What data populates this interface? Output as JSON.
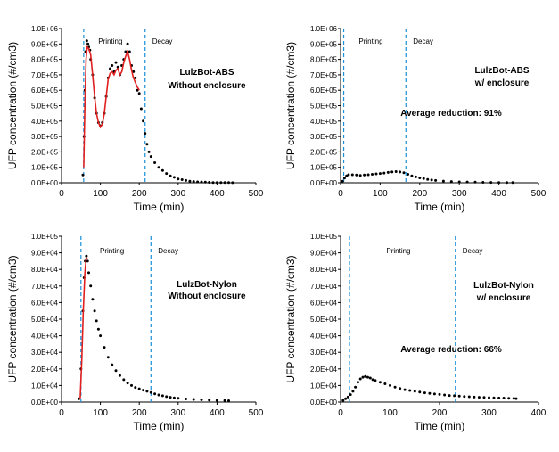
{
  "chart_data": [
    {
      "type": "scatter",
      "title": "",
      "annotation": [
        "LulzBot-ABS",
        "Without enclosure"
      ],
      "xlabel": "Time (min)",
      "ylabel": "UFP concentration (#/cm3)",
      "xlim": [
        0,
        500
      ],
      "ylim": [
        0,
        1000000
      ],
      "xticks": [
        0,
        100,
        200,
        300,
        400,
        500
      ],
      "yticks": [
        "0.0E+00",
        "1.0E+05",
        "2.0E+05",
        "3.0E+05",
        "4.0E+05",
        "5.0E+05",
        "6.0E+05",
        "7.0E+05",
        "8.0E+05",
        "9.0E+05",
        "1.0E+06"
      ],
      "phases": [
        {
          "label": "Printing",
          "start": 57,
          "end": 215
        },
        {
          "label": "Decay",
          "start": 215,
          "end": null
        }
      ],
      "grid": false,
      "series": [
        {
          "marker": "dots",
          "color": "#000000",
          "x": [
            55,
            58,
            60,
            62,
            65,
            68,
            70,
            73,
            75,
            80,
            85,
            90,
            95,
            100,
            105,
            110,
            115,
            120,
            125,
            130,
            135,
            140,
            145,
            150,
            155,
            160,
            165,
            170,
            175,
            180,
            185,
            190,
            195,
            200,
            205,
            210,
            215,
            220,
            225,
            230,
            240,
            250,
            260,
            270,
            280,
            290,
            300,
            310,
            320,
            330,
            340,
            350,
            360,
            370,
            380,
            390,
            400,
            410,
            420,
            430,
            440
          ],
          "y": [
            50000,
            300000,
            600000,
            850000,
            920000,
            900000,
            880000,
            860000,
            800000,
            700000,
            550000,
            450000,
            390000,
            370000,
            390000,
            450000,
            560000,
            680000,
            740000,
            760000,
            720000,
            780000,
            750000,
            700000,
            760000,
            800000,
            850000,
            900000,
            850000,
            760000,
            720000,
            680000,
            600000,
            580000,
            480000,
            400000,
            320000,
            250000,
            200000,
            170000,
            130000,
            100000,
            80000,
            60000,
            45000,
            35000,
            25000,
            20000,
            15000,
            10000,
            8000,
            6000,
            5000,
            4000,
            3000,
            2000,
            2000,
            1000,
            1000,
            1000,
            500
          ]
        },
        {
          "marker": "line",
          "color": "#e02020",
          "x": [
            57,
            60,
            63,
            66,
            70,
            75,
            80,
            85,
            90,
            95,
            100,
            105,
            110,
            115,
            120,
            125,
            130,
            135,
            140,
            145,
            150,
            155,
            160,
            165,
            170,
            175,
            180,
            185,
            190,
            195,
            200
          ],
          "y": [
            100000,
            500000,
            800000,
            880000,
            870000,
            830000,
            700000,
            560000,
            450000,
            390000,
            360000,
            380000,
            450000,
            560000,
            670000,
            710000,
            720000,
            700000,
            730000,
            740000,
            700000,
            720000,
            780000,
            820000,
            850000,
            800000,
            730000,
            680000,
            650000,
            620000,
            600000
          ]
        }
      ]
    },
    {
      "type": "scatter",
      "title": "",
      "annotation": [
        "LulzBot-ABS",
        "w/ enclosure"
      ],
      "note": "Average reduction: 91%",
      "xlabel": "Time (min)",
      "ylabel": "UFP concentration (#/cm3)",
      "xlim": [
        0,
        500
      ],
      "ylim": [
        0,
        1000000
      ],
      "xticks": [
        0,
        100,
        200,
        300,
        400,
        500
      ],
      "yticks": [
        "0.0E+00",
        "1.0E+05",
        "2.0E+05",
        "3.0E+05",
        "4.0E+05",
        "5.0E+05",
        "6.0E+05",
        "7.0E+05",
        "8.0E+05",
        "9.0E+05",
        "1.0E+06"
      ],
      "phases": [
        {
          "label": "Printing",
          "start": 8,
          "end": 165
        },
        {
          "label": "Decay",
          "start": 165,
          "end": null
        }
      ],
      "grid": false,
      "series": [
        {
          "marker": "dots",
          "color": "#000000",
          "x": [
            5,
            10,
            15,
            20,
            30,
            40,
            50,
            60,
            70,
            80,
            90,
            100,
            110,
            120,
            130,
            140,
            150,
            160,
            170,
            180,
            190,
            200,
            210,
            220,
            230,
            240,
            260,
            280,
            300,
            320,
            340,
            360,
            380,
            400,
            420,
            435
          ],
          "y": [
            10000,
            30000,
            45000,
            52000,
            52000,
            50000,
            48000,
            50000,
            52000,
            55000,
            58000,
            60000,
            63000,
            67000,
            70000,
            72000,
            70000,
            65000,
            55000,
            45000,
            38000,
            32000,
            27000,
            22000,
            18000,
            15000,
            11000,
            8000,
            6000,
            5000,
            4000,
            3000,
            2500,
            2000,
            2000,
            1500
          ]
        }
      ]
    },
    {
      "type": "scatter",
      "title": "",
      "annotation": [
        "LulzBot-Nylon",
        "Without enclosure"
      ],
      "xlabel": "Time (min)",
      "ylabel": "UFP concentration (#/cm3)",
      "xlim": [
        0,
        500
      ],
      "ylim": [
        0,
        100000
      ],
      "xticks": [
        0,
        100,
        200,
        300,
        400,
        500
      ],
      "yticks": [
        "0.0E+00",
        "1.0E+04",
        "2.0E+04",
        "3.0E+04",
        "4.0E+04",
        "5.0E+04",
        "6.0E+04",
        "7.0E+04",
        "8.0E+04",
        "9.0E+04",
        "1.0E+05"
      ],
      "phases": [
        {
          "label": "Printing",
          "start": 50,
          "end": 230
        },
        {
          "label": "Decay",
          "start": 230,
          "end": null
        }
      ],
      "grid": false,
      "series": [
        {
          "marker": "dots",
          "color": "#000000",
          "x": [
            45,
            50,
            55,
            58,
            61,
            64,
            67,
            70,
            75,
            80,
            85,
            90,
            95,
            100,
            110,
            120,
            130,
            140,
            150,
            160,
            170,
            180,
            190,
            200,
            210,
            220,
            230,
            240,
            250,
            260,
            270,
            280,
            290,
            300,
            320,
            340,
            360,
            380,
            400,
            420,
            430
          ],
          "y": [
            2000,
            20000,
            55000,
            75000,
            85000,
            88000,
            85000,
            78000,
            70000,
            62000,
            55000,
            49000,
            44000,
            40000,
            33000,
            27000,
            22500,
            19000,
            16000,
            13500,
            11500,
            10000,
            8800,
            8000,
            7200,
            6500,
            5800,
            5000,
            4300,
            3800,
            3300,
            2900,
            2600,
            2300,
            1900,
            1600,
            1400,
            1200,
            1000,
            900,
            800
          ]
        },
        {
          "marker": "line",
          "color": "#e02020",
          "x": [
            48,
            52,
            56,
            60,
            63,
            66
          ],
          "y": [
            2000,
            25000,
            55000,
            78000,
            86000,
            87000
          ]
        }
      ]
    },
    {
      "type": "scatter",
      "title": "",
      "annotation": [
        "LulzBot-Nylon",
        "w/ enclosure"
      ],
      "note": "Average reduction: 66%",
      "xlabel": "Time (min)",
      "ylabel": "UFP concentration (#/cm3)",
      "xlim": [
        0,
        400
      ],
      "ylim": [
        0,
        100000
      ],
      "xticks": [
        0,
        100,
        200,
        300,
        400
      ],
      "yticks": [
        "0.0E+00",
        "1.0E+04",
        "2.0E+04",
        "3.0E+04",
        "4.0E+04",
        "5.0E+04",
        "6.0E+04",
        "7.0E+04",
        "8.0E+04",
        "9.0E+04",
        "1.0E+05"
      ],
      "phases": [
        {
          "label": "Printing",
          "start": 18,
          "end": 232
        },
        {
          "label": "Decay",
          "start": 232,
          "end": null
        }
      ],
      "grid": false,
      "series": [
        {
          "marker": "dots",
          "color": "#000000",
          "x": [
            5,
            10,
            15,
            20,
            25,
            30,
            35,
            40,
            45,
            50,
            55,
            60,
            65,
            70,
            80,
            90,
            100,
            110,
            120,
            130,
            140,
            150,
            160,
            170,
            180,
            190,
            200,
            210,
            220,
            230,
            240,
            250,
            260,
            270,
            280,
            290,
            300,
            310,
            320,
            330,
            340,
            350,
            355
          ],
          "y": [
            1000,
            2000,
            3000,
            4500,
            6500,
            9000,
            12000,
            14000,
            15000,
            15500,
            15000,
            14500,
            13500,
            13000,
            12000,
            11000,
            10000,
            9000,
            8200,
            7500,
            7000,
            6500,
            6000,
            5600,
            5200,
            4900,
            4600,
            4300,
            4000,
            3800,
            3600,
            3400,
            3200,
            3000,
            2900,
            2800,
            2700,
            2600,
            2500,
            2400,
            2300,
            2200,
            2100
          ]
        }
      ]
    }
  ]
}
